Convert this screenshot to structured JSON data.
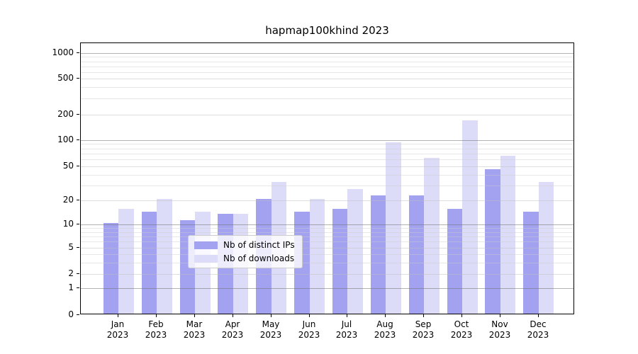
{
  "title": "hapmap100khind 2023",
  "colors": {
    "ips": "#a2a2f0",
    "downloads": "#dcdcf8",
    "spine": "#000000"
  },
  "legend": {
    "items": [
      {
        "label": "Nb of distinct IPs",
        "color_key": "ips"
      },
      {
        "label": "Nb of downloads",
        "color_key": "downloads"
      }
    ],
    "position": "lower center"
  },
  "y_axis": {
    "tick_labels": [
      "1000",
      "500",
      "200",
      "100",
      "50",
      "20",
      "10",
      "5",
      "2",
      "1",
      "0"
    ],
    "tick_values": [
      1000,
      500,
      200,
      100,
      50,
      20,
      10,
      5,
      2,
      1,
      0
    ],
    "minor_tick_values": [
      3,
      4,
      6,
      7,
      8,
      9,
      30,
      40,
      60,
      70,
      80,
      90,
      300,
      400,
      600,
      700,
      800,
      900
    ],
    "scale": "symlog"
  },
  "chart_data": {
    "type": "bar",
    "title": "hapmap100khind 2023",
    "categories": [
      "Jan 2023",
      "Feb 2023",
      "Mar 2023",
      "Apr 2023",
      "May 2023",
      "Jun 2023",
      "Jul 2023",
      "Aug 2023",
      "Sep 2023",
      "Oct 2023",
      "Nov 2023",
      "Dec 2023"
    ],
    "series": [
      {
        "name": "Nb of distinct IPs",
        "color_key": "ips",
        "values": [
          10,
          14,
          11,
          13,
          20,
          14,
          15,
          22,
          22,
          15,
          45,
          14
        ]
      },
      {
        "name": "Nb of downloads",
        "color_key": "downloads",
        "values": [
          15,
          20,
          14,
          13,
          32,
          20,
          26,
          90,
          60,
          165,
          64,
          32
        ]
      }
    ],
    "xlabel": "",
    "ylabel": "",
    "ylim": [
      0,
      1200
    ],
    "yticks": [
      0,
      1,
      2,
      5,
      10,
      20,
      50,
      100,
      200,
      500,
      1000
    ],
    "grid": true,
    "legend_position": "lower center"
  }
}
